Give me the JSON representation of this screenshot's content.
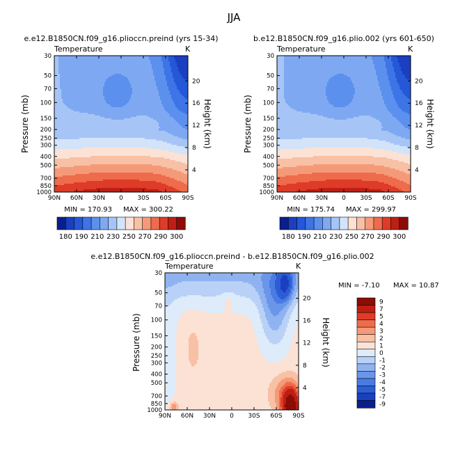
{
  "figure": {
    "season": "JJA",
    "left_title": "e.e12.B1850CN.f09_g16.plioccn.preind (yrs 15-34)",
    "right_title": "b.e12.B1850CN.f09_g16.plio.002 (yrs 601-650)",
    "bottom_title": "e.e12.B1850CN.f09_g16.plioccn.preind - b.e12.B1850CN.f09_g16.plio.002"
  },
  "chart_data": [
    {
      "type": "heatmap",
      "title": "e.e12.B1850CN.f09_g16.plioccn.preind (yrs 15-34)",
      "variable": "Temperature",
      "units": "K",
      "xlabel": "",
      "ylabel": "Pressure (mb)",
      "ylabel_right": "Height (km)",
      "x_ticks": [
        "90N",
        "60N",
        "30N",
        "0",
        "30S",
        "60S",
        "90S"
      ],
      "y_ticks": [
        30,
        50,
        70,
        100,
        150,
        200,
        250,
        300,
        400,
        500,
        700,
        850,
        1000
      ],
      "height_ticks": [
        4,
        8,
        12,
        16,
        20
      ],
      "ylim": [
        1000,
        30
      ],
      "y_scale": "log",
      "min_label": "MIN = 170.93",
      "max_label": "MAX = 300.22",
      "levels": [
        180,
        190,
        200,
        210,
        220,
        230,
        240,
        250,
        260,
        270,
        280,
        290,
        300
      ],
      "colorbar_labels": [
        "180",
        "190",
        "210",
        "230",
        "250",
        "270",
        "290",
        "300"
      ]
    },
    {
      "type": "heatmap",
      "title": "b.e12.B1850CN.f09_g16.plio.002 (yrs 601-650)",
      "variable": "Temperature",
      "units": "K",
      "xlabel": "",
      "ylabel": "Pressure (mb)",
      "ylabel_right": "Height (km)",
      "x_ticks": [
        "90N",
        "60N",
        "30N",
        "0",
        "30S",
        "60S",
        "90S"
      ],
      "y_ticks": [
        30,
        50,
        70,
        100,
        150,
        200,
        250,
        300,
        400,
        500,
        700,
        850,
        1000
      ],
      "height_ticks": [
        4,
        8,
        12,
        16,
        20
      ],
      "ylim": [
        1000,
        30
      ],
      "y_scale": "log",
      "min_label": "MIN = 175.74",
      "max_label": "MAX = 299.97",
      "levels": [
        180,
        190,
        200,
        210,
        220,
        230,
        240,
        250,
        260,
        270,
        280,
        290,
        300
      ],
      "colorbar_labels": [
        "180",
        "190",
        "210",
        "230",
        "250",
        "270",
        "290",
        "300"
      ]
    },
    {
      "type": "heatmap",
      "title": "e.e12.B1850CN.f09_g16.plioccn.preind - b.e12.B1850CN.f09_g16.plio.002",
      "variable": "Temperature",
      "units": "K",
      "xlabel": "",
      "ylabel": "Pressure (mb)",
      "ylabel_right": "Height (km)",
      "x_ticks": [
        "90N",
        "60N",
        "30N",
        "0",
        "30S",
        "60S",
        "90S"
      ],
      "y_ticks": [
        30,
        50,
        70,
        100,
        150,
        200,
        250,
        300,
        400,
        500,
        700,
        850,
        1000
      ],
      "height_ticks": [
        4,
        8,
        12,
        16,
        20
      ],
      "ylim": [
        1000,
        30
      ],
      "y_scale": "log",
      "min_label": "MIN =   -7.10",
      "max_label": "MAX =   10.87",
      "levels": [
        -9,
        -7,
        -5,
        -4,
        -3,
        -2,
        -1,
        0,
        1,
        2,
        3,
        4,
        5,
        7,
        9
      ],
      "colorbar_labels": [
        "9",
        "7",
        "5",
        "4",
        "3",
        "2",
        "1",
        "0",
        "-1",
        "-2",
        "-3",
        "-4",
        "-5",
        "-7",
        "-9"
      ]
    }
  ],
  "colors": {
    "abs_scale": [
      "#0a1f8e",
      "#1a3fbf",
      "#2458d8",
      "#3d74e6",
      "#5b90ee",
      "#7ea9f2",
      "#a6c5f6",
      "#d3e3fa",
      "#fbe2d4",
      "#f8c0a4",
      "#f59a78",
      "#ee6b4c",
      "#de3c28",
      "#bd1f12",
      "#8c0c06"
    ],
    "diff_scale": [
      "#8c0c06",
      "#bd1f12",
      "#de3c28",
      "#ee6b4c",
      "#f59a78",
      "#f8c0a4",
      "#fbe2d4",
      "#deebfa",
      "#b9d1f6",
      "#8fb3f0",
      "#6a96ea",
      "#4a7be2",
      "#2d5dd4",
      "#1a3fbf",
      "#0a1f8e"
    ]
  }
}
